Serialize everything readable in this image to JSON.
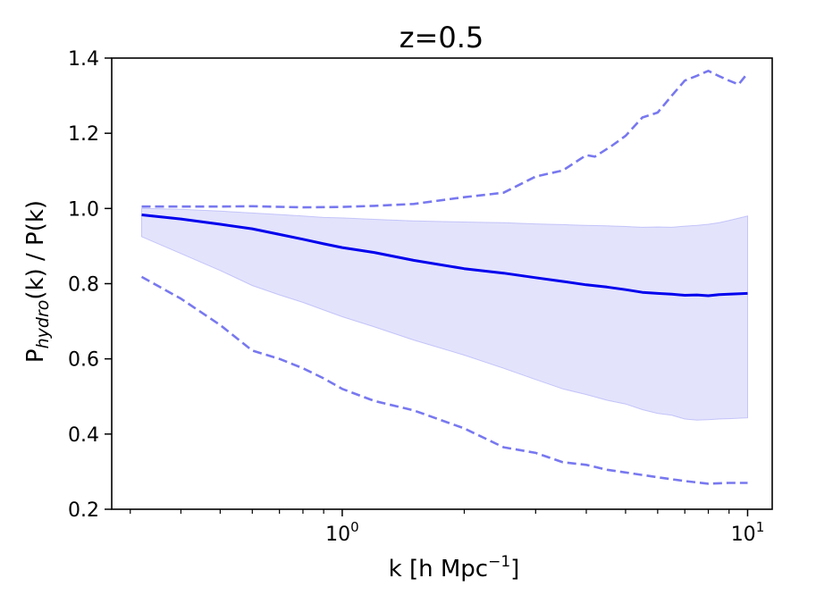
{
  "chart_data": {
    "type": "line",
    "title": "z=0.5",
    "xlabel": {
      "base": "k [h Mpc",
      "sup": "−1",
      "close": "]"
    },
    "ylabel": {
      "pre": "P",
      "sub": "hydro",
      "post": "(k) / P(k)"
    },
    "xscale": "log",
    "xlim": [
      0.27,
      11.5
    ],
    "ylim": [
      0.2,
      1.4
    ],
    "x_ticks": [
      {
        "value": 1,
        "base": "10",
        "exp": "0"
      },
      {
        "value": 10,
        "base": "10",
        "exp": "1"
      }
    ],
    "y_ticks": [
      {
        "value": 0.2,
        "label": "0.2"
      },
      {
        "value": 0.4,
        "label": "0.4"
      },
      {
        "value": 0.6,
        "label": "0.6"
      },
      {
        "value": 0.8,
        "label": "0.8"
      },
      {
        "value": 1.0,
        "label": "1.0"
      },
      {
        "value": 1.2,
        "label": "1.2"
      },
      {
        "value": 1.4,
        "label": "1.4"
      }
    ],
    "x_minor_ticks": [
      0.3,
      0.4,
      0.5,
      0.6,
      0.7,
      0.8,
      0.9,
      2,
      3,
      4,
      5,
      6,
      7,
      8,
      9
    ],
    "colors": {
      "line": "#0000ee",
      "band": "#9a9af5",
      "dashed": "#7878f0"
    },
    "series": [
      {
        "name": "median",
        "style": "solid",
        "x": [
          0.32,
          0.4,
          0.5,
          0.6,
          0.7,
          0.8,
          0.9,
          1.0,
          1.2,
          1.5,
          2.0,
          2.5,
          3.0,
          3.5,
          4.0,
          4.5,
          5.0,
          5.5,
          6.0,
          6.5,
          7.0,
          7.5,
          8.0,
          8.5,
          9.0,
          10.0
        ],
        "y": [
          0.983,
          0.972,
          0.958,
          0.946,
          0.931,
          0.918,
          0.906,
          0.896,
          0.883,
          0.862,
          0.84,
          0.828,
          0.816,
          0.806,
          0.797,
          0.791,
          0.784,
          0.777,
          0.774,
          0.772,
          0.769,
          0.77,
          0.768,
          0.771,
          0.772,
          0.774
        ]
      },
      {
        "name": "upper bound",
        "style": "dashed",
        "x": [
          0.32,
          0.5,
          0.6,
          0.8,
          1.0,
          1.2,
          1.5,
          2.0,
          2.5,
          3.0,
          3.5,
          4.0,
          4.2,
          4.6,
          5.0,
          5.5,
          6.0,
          6.5,
          7.0,
          7.5,
          8.0,
          8.5,
          9.0,
          9.5,
          10.0
        ],
        "y": [
          1.005,
          1.005,
          1.006,
          1.003,
          1.004,
          1.007,
          1.012,
          1.03,
          1.042,
          1.085,
          1.101,
          1.142,
          1.138,
          1.165,
          1.193,
          1.242,
          1.255,
          1.3,
          1.34,
          1.353,
          1.366,
          1.352,
          1.34,
          1.33,
          1.36
        ]
      },
      {
        "name": "lower bound",
        "style": "dashed",
        "x": [
          0.32,
          0.4,
          0.5,
          0.6,
          0.7,
          0.8,
          0.9,
          1.0,
          1.2,
          1.5,
          2.0,
          2.5,
          3.0,
          3.5,
          4.0,
          4.5,
          5.0,
          6.0,
          7.0,
          8.0,
          9.0,
          10.0
        ],
        "y": [
          0.818,
          0.76,
          0.69,
          0.622,
          0.6,
          0.575,
          0.548,
          0.52,
          0.488,
          0.463,
          0.415,
          0.365,
          0.35,
          0.325,
          0.318,
          0.305,
          0.298,
          0.285,
          0.275,
          0.268,
          0.27,
          0.27
        ]
      }
    ],
    "band": {
      "name": "scatter region",
      "x": [
        0.32,
        0.4,
        0.5,
        0.6,
        0.7,
        0.8,
        0.9,
        1.0,
        1.2,
        1.5,
        2.0,
        2.5,
        3.0,
        3.5,
        4.0,
        4.5,
        5.0,
        5.5,
        6.0,
        6.5,
        7.0,
        7.5,
        8.0,
        8.5,
        9.0,
        10.0
      ],
      "upper": [
        1.0,
        0.998,
        0.993,
        0.988,
        0.984,
        0.98,
        0.976,
        0.975,
        0.971,
        0.967,
        0.964,
        0.962,
        0.959,
        0.957,
        0.955,
        0.954,
        0.952,
        0.95,
        0.951,
        0.95,
        0.953,
        0.955,
        0.958,
        0.962,
        0.968,
        0.98
      ],
      "lower": [
        0.925,
        0.88,
        0.835,
        0.795,
        0.77,
        0.75,
        0.73,
        0.712,
        0.685,
        0.65,
        0.61,
        0.575,
        0.545,
        0.52,
        0.505,
        0.49,
        0.48,
        0.465,
        0.455,
        0.45,
        0.44,
        0.437,
        0.438,
        0.44,
        0.441,
        0.443
      ]
    }
  }
}
